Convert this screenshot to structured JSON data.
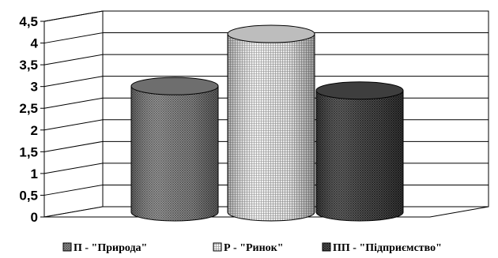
{
  "chart_data": {
    "type": "bar",
    "style": "3d-cylinder",
    "categories": [
      "П - \"Природа\"",
      "Р - \"Ринок\"",
      "ПП - \"Підприємство\""
    ],
    "values": [
      2.9,
      4.1,
      2.8
    ],
    "ylim": [
      0,
      4.5
    ],
    "ytick_step": 0.5,
    "ytick_labels": [
      "0",
      "0,5",
      "1",
      "1,5",
      "2",
      "2,5",
      "3",
      "3,5",
      "4",
      "4,5"
    ],
    "grid": true,
    "legend": {
      "position": "bottom",
      "entries": [
        {
          "label": "П - \"Природа\"",
          "pattern": "crosshatch-fine"
        },
        {
          "label": "Р - \"Ринок\"",
          "pattern": "grid-light"
        },
        {
          "label": "ПП - \"Підприємство\"",
          "pattern": "crosshatch-dark"
        }
      ]
    },
    "colors": {
      "priroda": "#8c8c8c",
      "rynok": "#d9d9d9",
      "pidpryiemstvo": "#555555"
    }
  }
}
